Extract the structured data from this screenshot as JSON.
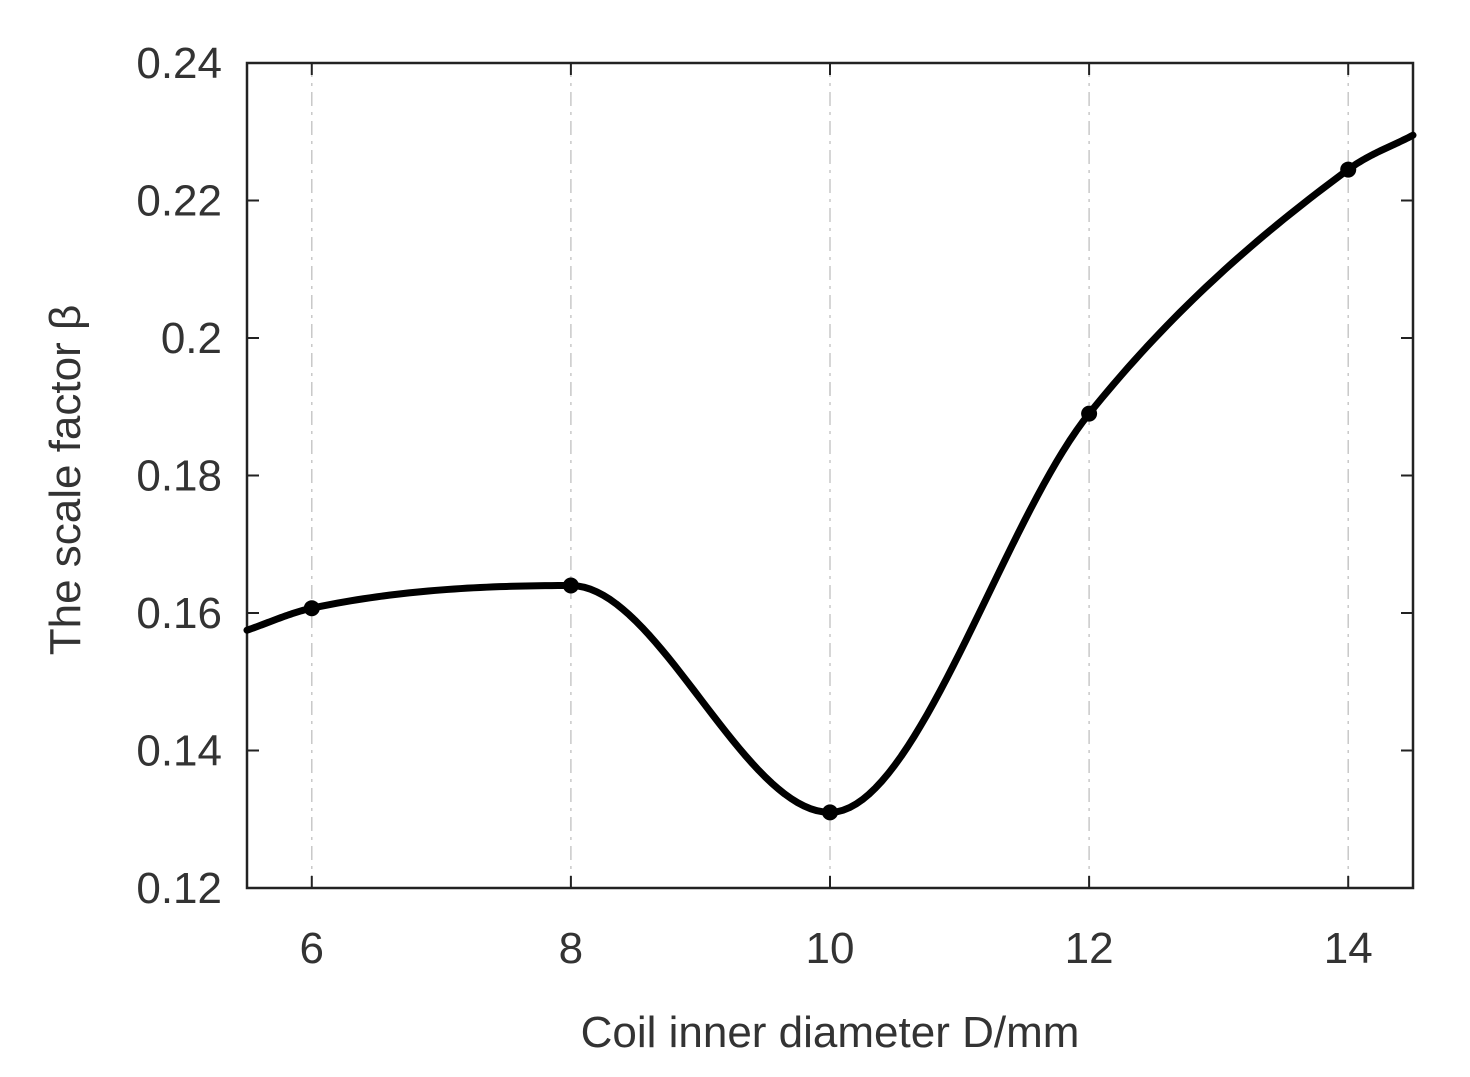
{
  "chart_data": {
    "type": "line",
    "title": "",
    "xlabel": "Coil inner diameter D/mm",
    "ylabel": "The scale factor β",
    "xlim": [
      5.5,
      14.5
    ],
    "ylim": [
      0.12,
      0.24
    ],
    "xticks": [
      6,
      8,
      10,
      12,
      14
    ],
    "xtick_labels": [
      "6",
      "8",
      "10",
      "12",
      "14"
    ],
    "yticks": [
      0.12,
      0.14,
      0.16,
      0.18,
      0.2,
      0.22,
      0.24
    ],
    "ytick_labels": [
      "0.12",
      "0.14",
      "0.16",
      "0.18",
      "0.2",
      "0.22",
      "0.24"
    ],
    "grid": "vertical dash-dot",
    "series": [
      {
        "x": [
          6,
          8,
          10,
          12,
          14
        ],
        "values": [
          0.1607,
          0.164,
          0.131,
          0.189,
          0.2245
        ],
        "smooth": true,
        "markers": true,
        "color": "#000000"
      }
    ],
    "curve_extent": {
      "start": [
        5.5,
        0.1575
      ],
      "end": [
        14.5,
        0.2295
      ]
    }
  }
}
